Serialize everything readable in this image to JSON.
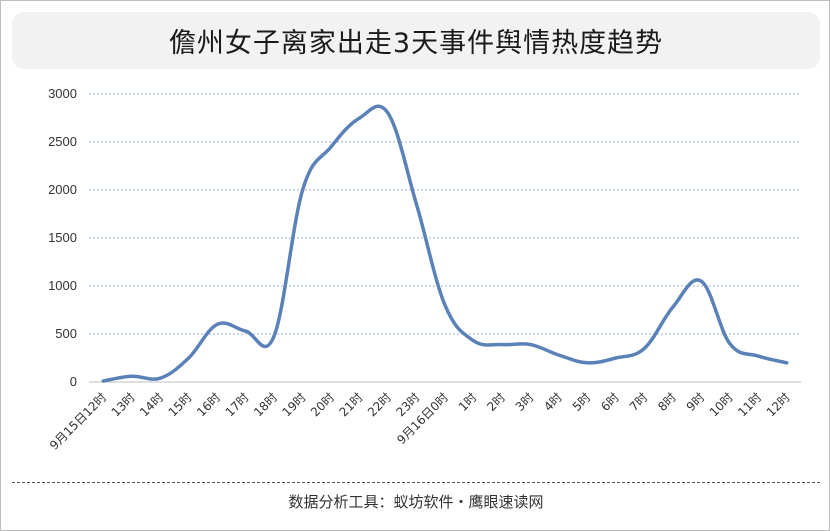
{
  "title": "儋州女子离家出走3天事件舆情热度趋势",
  "footer": "数据分析工具：蚁坊软件・鹰眼速读网",
  "colors": {
    "line": "#5b82b8",
    "grid": "#9ab3d6",
    "axis": "#bfbfbf",
    "title_bg": "#f2f2f2"
  },
  "chart_data": {
    "type": "line",
    "title": "儋州女子离家出走3天事件舆情热度趋势",
    "xlabel": "",
    "ylabel": "",
    "ylim": [
      0,
      3000
    ],
    "yticks": [
      0,
      500,
      1000,
      1500,
      2000,
      2500,
      3000
    ],
    "grid": true,
    "legend": "none",
    "categories": [
      "9月15日12时",
      "13时",
      "14时",
      "15时",
      "16时",
      "17时",
      "18时",
      "19时",
      "20时",
      "21时",
      "22时",
      "23时",
      "9月16日0时",
      "1时",
      "2时",
      "3时",
      "4时",
      "5时",
      "6时",
      "7时",
      "8时",
      "9时",
      "10时",
      "11时",
      "12时"
    ],
    "series": [
      {
        "values": [
          10,
          60,
          40,
          250,
          600,
          530,
          480,
          2000,
          2450,
          2750,
          2800,
          1850,
          800,
          430,
          390,
          390,
          280,
          200,
          250,
          350,
          780,
          1050,
          400,
          270,
          200
        ]
      }
    ]
  }
}
